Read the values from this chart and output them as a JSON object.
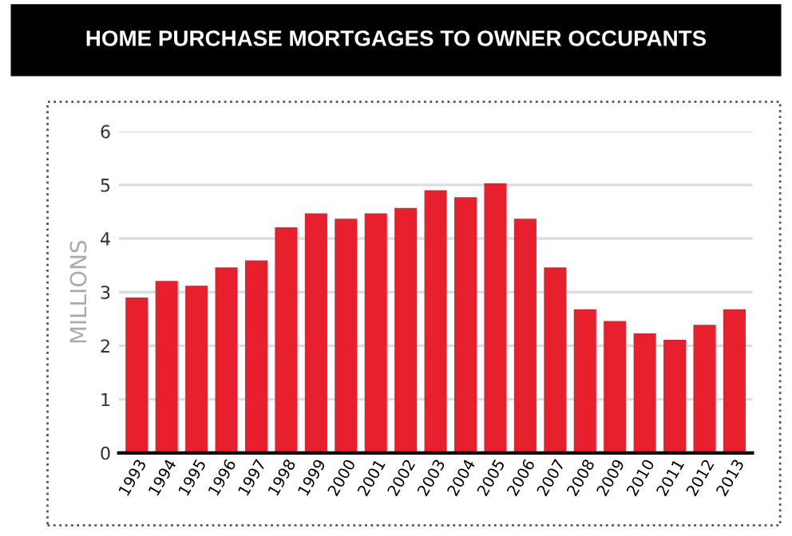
{
  "chart_data": {
    "type": "bar",
    "title": "HOME PURCHASE MORTGAGES TO OWNER OCCUPANTS",
    "ylabel": "MILLIONS",
    "categories": [
      "1993",
      "1994",
      "1995",
      "1996",
      "1997",
      "1998",
      "1999",
      "2000",
      "2001",
      "2002",
      "2003",
      "2004",
      "2005",
      "2006",
      "2007",
      "2008",
      "2009",
      "2010",
      "2011",
      "2012",
      "2013"
    ],
    "values": [
      2.9,
      3.21,
      3.12,
      3.46,
      3.59,
      4.21,
      4.47,
      4.37,
      4.47,
      4.57,
      4.9,
      4.77,
      5.03,
      4.37,
      3.46,
      2.68,
      2.46,
      2.23,
      2.11,
      2.39,
      2.68
    ],
    "color": "#e8202e",
    "ylim": [
      0,
      6
    ],
    "yticks": [
      0,
      1,
      2,
      3,
      4,
      5,
      6
    ],
    "grid": "y"
  }
}
